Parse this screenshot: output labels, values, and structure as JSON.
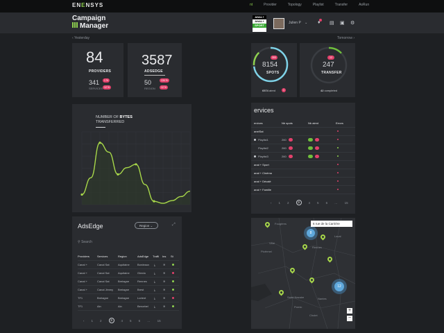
{
  "topbar": {
    "logo_pre": "EN",
    "logo_accent": "E",
    "logo_post": "NSYS",
    "nav": [
      {
        "label": "nt",
        "active": true
      },
      {
        "label": "Provider",
        "active": false
      },
      {
        "label": "Topology",
        "active": false
      },
      {
        "label": "Playlist",
        "active": false
      },
      {
        "label": "Transfer",
        "active": false
      },
      {
        "label": "AsRun",
        "active": false
      }
    ]
  },
  "header": {
    "title_line1": "Campaign",
    "title_line2": "Manager",
    "channel_line1": "ANAL+",
    "channel_line2": "ANAL+",
    "channel_line3": "SPORT",
    "username": "Julien P",
    "user_chevron": "⌄"
  },
  "subrow": {
    "left": "Yesterday",
    "right": "Tomorrow"
  },
  "stats": {
    "providers": {
      "value": "84",
      "label": "PROVIDERS",
      "sub_value": "341",
      "sub_label": "SERVICES",
      "badge1": "1 %",
      "badge2": "12 %"
    },
    "adsedge": {
      "value": "3587",
      "label": "ADSEDGE",
      "sub_value": "50",
      "sub_label": "REGION",
      "badge1": "134 %",
      "badge2": "12 %"
    },
    "spots": {
      "value": "8154",
      "label": "SPOTS",
      "badge": "300",
      "footer_value": "6574",
      "footer_text": "aired",
      "footer_badge": "1"
    },
    "transfer": {
      "value": "247",
      "label": "TRANSFER",
      "badge": "12",
      "footer_value": "42",
      "footer_text": "completed"
    },
    "ring_colors": {
      "spots_track": "#3a3d42",
      "spots_fill": "#7fd3e8",
      "spots_fill2": "#8fd14f",
      "transfer_fill": "#6fbf3c"
    }
  },
  "bytes_chart": {
    "title_pre": "NUMBER OF",
    "title_bold": "BYTES",
    "title_line2": "TRANSFERRED",
    "line_color": "#a8d84a"
  },
  "chart_data": {
    "type": "line",
    "title": "NUMBER OF BYTES TRANSFERRED",
    "x": [
      0,
      1,
      2,
      3,
      4,
      5,
      6,
      7,
      8,
      9,
      10,
      11,
      12
    ],
    "values": [
      0.15,
      0.4,
      0.92,
      0.78,
      0.45,
      0.55,
      0.6,
      0.3,
      0.05,
      0.02,
      0.06,
      0.12,
      0.2
    ],
    "ylim": [
      0,
      1
    ],
    "grid": true
  },
  "adsedge_panel": {
    "title": "AdsEdge",
    "dropdown": "Region",
    "search": "Search",
    "columns": [
      "Providers",
      "Services",
      "Region",
      "AdsEdge",
      "Traffi",
      "Ins",
      "St"
    ],
    "rows": [
      {
        "provider": "Canal +",
        "service": "Canal Sat",
        "region": "Aquitaine",
        "adsedge": "Bordeaux",
        "status": "#8fd14f"
      },
      {
        "provider": "Canal +",
        "service": "Canal Sat",
        "region": "Aquitaine",
        "adsedge": "Giredo",
        "status": "#e2416b"
      },
      {
        "provider": "Canal +",
        "service": "Canal Sat",
        "region": "Bretagne",
        "adsedge": "Rennes",
        "status": "#8fd14f"
      },
      {
        "provider": "Canal +",
        "service": "Canal Jimmy",
        "region": "Bretagne",
        "adsedge": "Brest",
        "status": "#8fd14f"
      },
      {
        "provider": "TF1",
        "service": "Bretagne",
        "region": "Bretagne",
        "adsedge": "Lorient",
        "status": "#e2416b"
      },
      {
        "provider": "TF1",
        "service": "Ain",
        "region": "Ain",
        "adsedge": "Bercebel",
        "status": "#8fd14f"
      }
    ],
    "pager": [
      "‹",
      "1",
      "2",
      "3",
      "4",
      "5",
      "6",
      "…",
      "15",
      "›"
    ],
    "current_page": "3"
  },
  "services_panel": {
    "title": "ervices",
    "columns": [
      "ervices",
      "Nb spots",
      "Nb aired",
      "Errors"
    ],
    "rows": [
      {
        "name": "anelSat",
        "spots": "",
        "aired": "",
        "status": "#e2416b",
        "indent": false,
        "bullet": false
      },
      {
        "name": "Playlist1",
        "spots": "260",
        "aired": "",
        "status": "#e2416b",
        "indent": true,
        "bullet": true
      },
      {
        "name": "Playlist2",
        "spots": "260",
        "aired": "",
        "status": "#8fd14f",
        "indent": true,
        "bullet": false
      },
      {
        "name": "Playlist3",
        "spots": "260",
        "aired": "",
        "status": "#8fd14f",
        "indent": true,
        "bullet": true
      },
      {
        "name": "anal + Sport",
        "spots": "",
        "aired": "",
        "status": "#e2416b",
        "indent": false,
        "bullet": false
      },
      {
        "name": "anal + Cinéma",
        "spots": "",
        "aired": "",
        "status": "#e2416b",
        "indent": false,
        "bullet": false
      },
      {
        "name": "anal + Décalé",
        "spots": "",
        "aired": "",
        "status": "#e2416b",
        "indent": false,
        "bullet": false
      },
      {
        "name": "anal + Famille",
        "spots": "",
        "aired": "",
        "status": "#e2416b",
        "indent": false,
        "bullet": false
      }
    ],
    "pager": [
      "‹",
      "1",
      "2",
      "3",
      "4",
      "5",
      "6",
      "…",
      "15"
    ],
    "current_page": "3"
  },
  "map": {
    "search_value": "6 rue de la Carrière",
    "cluster1": "8",
    "cluster2": "12",
    "zoom_in": "+",
    "zoom_out": "−",
    "towns": [
      {
        "name": "Fougères"
      },
      {
        "name": "Rennes"
      },
      {
        "name": "Laval"
      },
      {
        "name": "Vitré"
      },
      {
        "name": "Ploërmel"
      },
      {
        "name": "Nantes"
      },
      {
        "name": "Saint-Nazaire"
      },
      {
        "name": "Cholet"
      },
      {
        "name": "Pornic"
      }
    ]
  }
}
